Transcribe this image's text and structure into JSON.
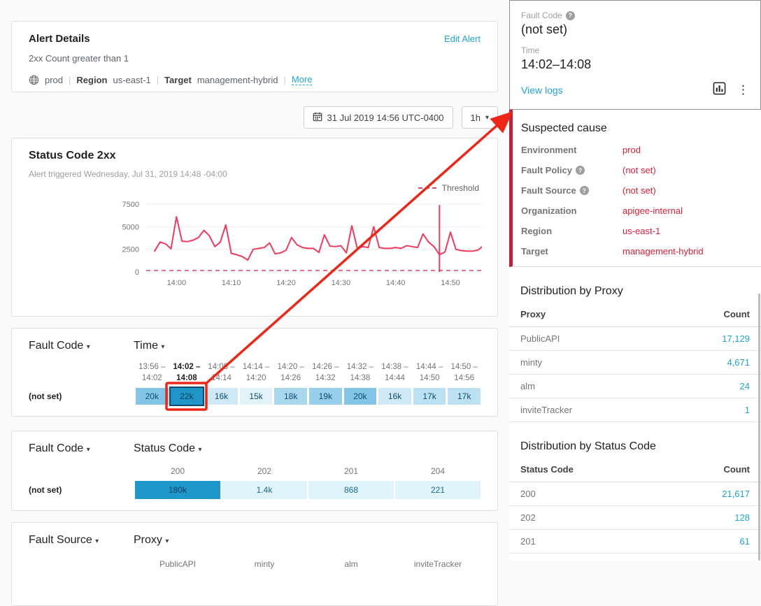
{
  "colors": {
    "accent_blue": "#1fa3dd",
    "red_value_text": "#df1f38",
    "annotation_red": "#ee2618",
    "suspected_bar_red": "#c0203c",
    "chart_line_pink": "#f23a5e",
    "threshold_pink": "#d4486e",
    "selected_cell_outline": "#15496d"
  },
  "icons": {
    "caret_down": "▾",
    "kebab": "⋮",
    "help": "?"
  },
  "alert_details": {
    "title": "Alert Details",
    "edit_link": "Edit Alert",
    "condition": "2xx Count greater than 1",
    "environment": "prod",
    "region_label": "Region",
    "region": "us-east-1",
    "target_label": "Target",
    "target": "management-hybrid",
    "more_link": "More"
  },
  "toolbar": {
    "datetime": "31 Jul 2019 14:56 UTC-0400",
    "range": "1h"
  },
  "chart_card": {
    "title": "Status Code 2xx",
    "subtitle": "Alert triggered Wednesday, Jul 31, 2019 14:48 -04:00",
    "legend_label": "Threshold"
  },
  "chart_data": [
    {
      "type": "line",
      "title": "Status Code 2xx",
      "x_start": "13:56",
      "x_end": "14:56",
      "interval_minutes": 1,
      "x_ticks": [
        "14:00",
        "14:10",
        "14:20",
        "14:30",
        "14:40",
        "14:50"
      ],
      "x_tick_minute_offsets": [
        4,
        14,
        24,
        34,
        44,
        54
      ],
      "y_ticks": [
        0,
        2500,
        5000,
        7500
      ],
      "ylim": [
        0,
        7700
      ],
      "values": [
        2300,
        3300,
        3100,
        2550,
        6100,
        3400,
        3350,
        3500,
        3800,
        4600,
        4000,
        2800,
        3300,
        5200,
        2050,
        1900,
        1700,
        1300,
        2500,
        2600,
        2700,
        3200,
        2000,
        2100,
        2400,
        3800,
        3000,
        2700,
        2600,
        2600,
        2150,
        4100,
        2850,
        2800,
        2900,
        2100,
        5100,
        2600,
        2800,
        2700,
        5000,
        2700,
        2600,
        2600,
        2700,
        2600,
        2900,
        2800,
        2700,
        4200,
        3300,
        2800,
        1900,
        2200,
        4400,
        2500,
        2350,
        2300,
        2300,
        2400,
        2900
      ],
      "threshold": 1,
      "legend": [
        "Threshold"
      ],
      "legend_position": "top-right",
      "grid": true,
      "alert_marker": {
        "time": "14:48",
        "minute_index": 52,
        "top_value": 7400
      }
    },
    {
      "type": "heatmap",
      "row_dimension": "Fault Code",
      "col_dimension": "Time",
      "rows": [
        "(not set)"
      ],
      "columns": [
        "13:56–14:02",
        "14:02–14:08",
        "14:08–14:14",
        "14:14–14:20",
        "14:20–14:26",
        "14:26–14:32",
        "14:32–14:38",
        "14:38–14:44",
        "14:44–14:50",
        "14:50–14:56"
      ],
      "values": [
        [
          20000,
          22000,
          16000,
          15000,
          18000,
          19000,
          20000,
          16000,
          17000,
          17000
        ]
      ],
      "selected_column": "14:02–14:08"
    },
    {
      "type": "heatmap",
      "row_dimension": "Fault Code",
      "col_dimension": "Status Code",
      "rows": [
        "(not set)"
      ],
      "columns": [
        "200",
        "202",
        "201",
        "204"
      ],
      "values": [
        [
          180000,
          1400,
          868,
          221
        ]
      ]
    }
  ],
  "fault_time_card": {
    "row_dimension": "Fault Code",
    "col_dimension": "Time",
    "row_label": "(not set)",
    "columns": [
      {
        "top": "13:56 –",
        "bottom": "14:02",
        "selected": false
      },
      {
        "top": "14:02 –",
        "bottom": "14:08",
        "selected": true
      },
      {
        "top": "14:08 –",
        "bottom": "14:14",
        "selected": false
      },
      {
        "top": "14:14 –",
        "bottom": "14:20",
        "selected": false
      },
      {
        "top": "14:20 –",
        "bottom": "14:26",
        "selected": false
      },
      {
        "top": "14:26 –",
        "bottom": "14:32",
        "selected": false
      },
      {
        "top": "14:32 –",
        "bottom": "14:38",
        "selected": false
      },
      {
        "top": "14:38 –",
        "bottom": "14:44",
        "selected": false
      },
      {
        "top": "14:44 –",
        "bottom": "14:50",
        "selected": false
      },
      {
        "top": "14:50 –",
        "bottom": "14:56",
        "selected": false
      }
    ],
    "cells": [
      {
        "label": "20k",
        "value": 20000,
        "bg": "#82c5e5",
        "fg": "#0d4d74",
        "selected": false
      },
      {
        "label": "22k",
        "value": 22000,
        "bg": "#2095c8",
        "fg": "#0b3d5c",
        "selected": true
      },
      {
        "label": "16k",
        "value": 16000,
        "bg": "#cfeaf6",
        "fg": "#0d4d74",
        "selected": false
      },
      {
        "label": "15k",
        "value": 15000,
        "bg": "#e2f3fa",
        "fg": "#0d4d74",
        "selected": false
      },
      {
        "label": "18k",
        "value": 18000,
        "bg": "#a9d7ee",
        "fg": "#0d4d74",
        "selected": false
      },
      {
        "label": "19k",
        "value": 19000,
        "bg": "#96cfea",
        "fg": "#0d4d74",
        "selected": false
      },
      {
        "label": "20k",
        "value": 20000,
        "bg": "#82c5e5",
        "fg": "#0d4d74",
        "selected": false
      },
      {
        "label": "16k",
        "value": 16000,
        "bg": "#cfeaf6",
        "fg": "#0d4d74",
        "selected": false
      },
      {
        "label": "17k",
        "value": 17000,
        "bg": "#bce1f2",
        "fg": "#0d4d74",
        "selected": false
      },
      {
        "label": "17k",
        "value": 17000,
        "bg": "#bce1f2",
        "fg": "#0d4d74",
        "selected": false
      }
    ]
  },
  "fault_status_card": {
    "row_dimension": "Fault Code",
    "col_dimension": "Status Code",
    "row_label": "(not set)",
    "columns": [
      "200",
      "202",
      "201",
      "204"
    ],
    "cells": [
      {
        "label": "180k",
        "value": 180000,
        "bg": "#1e98cb",
        "fg": "#0b3d5c"
      },
      {
        "label": "1.4k",
        "value": 1400,
        "bg": "#dff4fb",
        "fg": "#1b6a94"
      },
      {
        "label": "868",
        "value": 868,
        "bg": "#dff4fb",
        "fg": "#1b6a94"
      },
      {
        "label": "221",
        "value": 221,
        "bg": "#dff4fb",
        "fg": "#1b6a94"
      }
    ]
  },
  "fault_source_card": {
    "row_dimension": "Fault Source",
    "col_dimension": "Proxy",
    "columns": [
      "PublicAPI",
      "minty",
      "alm",
      "inviteTracker"
    ]
  },
  "detail_panel": {
    "fault_code_label": "Fault Code",
    "fault_code_value": "(not set)",
    "time_label": "Time",
    "time_value": "14:02–14:08",
    "view_logs_link": "View logs"
  },
  "suspected_cause": {
    "title": "Suspected cause",
    "rows": [
      {
        "label": "Environment",
        "value": "prod",
        "help": false
      },
      {
        "label": "Fault Policy",
        "value": "(not set)",
        "help": true
      },
      {
        "label": "Fault Source",
        "value": "(not set)",
        "help": true
      },
      {
        "label": "Organization",
        "value": "apigee-internal",
        "help": false
      },
      {
        "label": "Region",
        "value": "us-east-1",
        "help": false
      },
      {
        "label": "Target",
        "value": "management-hybrid",
        "help": false
      }
    ]
  },
  "distribution_proxy": {
    "title": "Distribution by Proxy",
    "col_name": "Proxy",
    "col_count": "Count",
    "rows": [
      {
        "name": "PublicAPI",
        "count": "17,129"
      },
      {
        "name": "minty",
        "count": "4,671"
      },
      {
        "name": "alm",
        "count": "24"
      },
      {
        "name": "inviteTracker",
        "count": "1"
      }
    ]
  },
  "distribution_status": {
    "title": "Distribution by Status Code",
    "col_name": "Status Code",
    "col_count": "Count",
    "rows": [
      {
        "name": "200",
        "count": "21,617"
      },
      {
        "name": "202",
        "count": "128"
      },
      {
        "name": "201",
        "count": "61"
      }
    ]
  }
}
